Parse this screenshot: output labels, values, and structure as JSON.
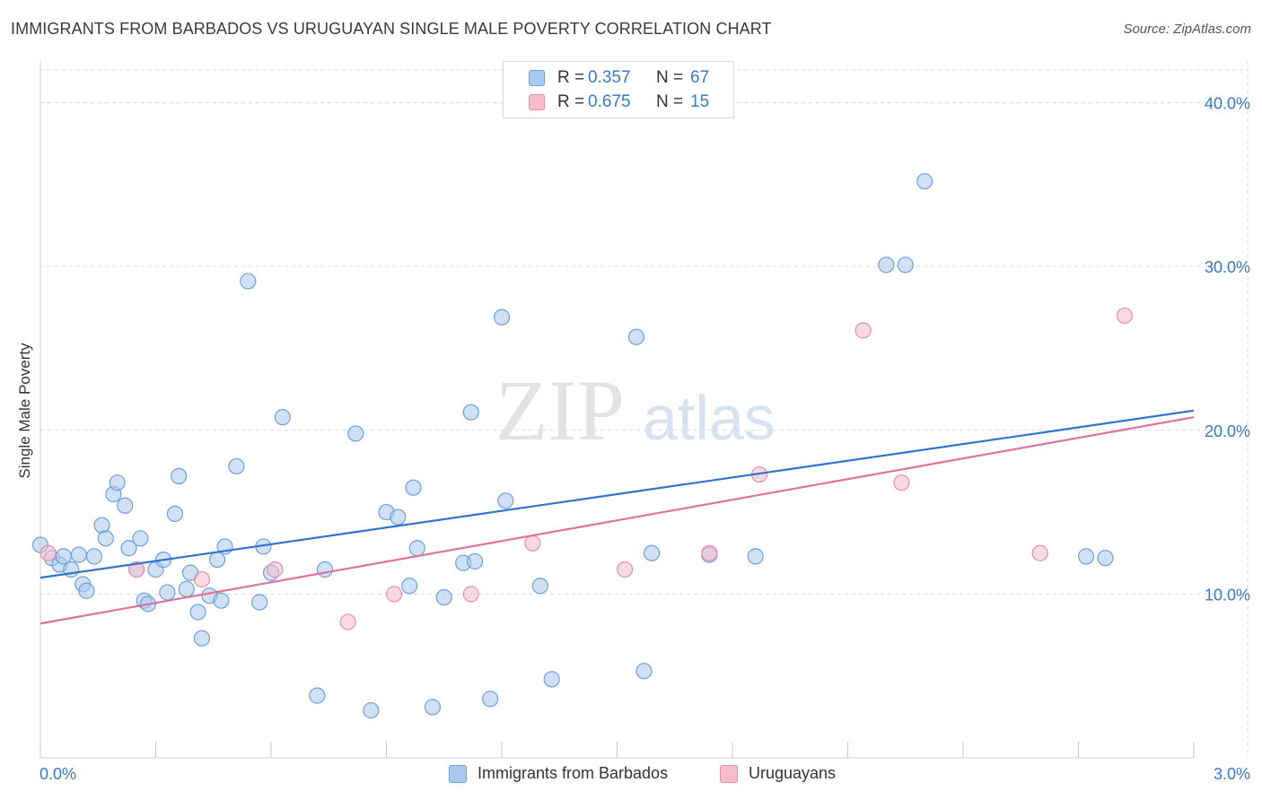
{
  "header": {
    "title": "IMMIGRANTS FROM BARBADOS VS URUGUAYAN SINGLE MALE POVERTY CORRELATION CHART",
    "source": "Source: ZipAtlas.com"
  },
  "watermark": {
    "zip": "ZIP",
    "atlas": "atlas"
  },
  "legend": {
    "r_label": "R =",
    "n_label": "N =",
    "items": [
      {
        "r": "0.357",
        "n": "67"
      },
      {
        "r": "0.675",
        "n": "15"
      }
    ]
  },
  "colors": {
    "blue_fill": "#a9c8ee",
    "blue_stroke": "#6f9fd8",
    "blue_line": "#2f74d0",
    "pink_fill": "#f5bccb",
    "pink_stroke": "#e88fa8",
    "pink_line": "#e0729a",
    "value_text": "#3a78c9",
    "grid": "#d9d9d9"
  },
  "chart_data": {
    "type": "scatter",
    "title": "IMMIGRANTS FROM BARBADOS VS URUGUAYAN SINGLE MALE POVERTY CORRELATION CHART",
    "xlabel": "",
    "ylabel": "Single Male Poverty",
    "xlim": [
      0,
      3.0
    ],
    "ylim": [
      0,
      42
    ],
    "x_tick_labels": [
      "0.0%",
      "3.0%"
    ],
    "y_ticks": [
      10,
      20,
      30,
      40
    ],
    "y_tick_labels": [
      "10.0%",
      "20.0%",
      "30.0%",
      "40.0%"
    ],
    "grid": true,
    "series": [
      {
        "name": "Immigrants from Barbados",
        "color": "#a9c8ee",
        "trend": {
          "x": [
            0,
            3.0
          ],
          "y": [
            11.0,
            21.2
          ]
        },
        "points": [
          [
            0.0,
            13.0
          ],
          [
            0.03,
            12.2
          ],
          [
            0.05,
            11.8
          ],
          [
            0.06,
            12.3
          ],
          [
            0.08,
            11.5
          ],
          [
            0.1,
            12.4
          ],
          [
            0.11,
            10.6
          ],
          [
            0.12,
            10.2
          ],
          [
            0.14,
            12.3
          ],
          [
            0.16,
            14.2
          ],
          [
            0.17,
            13.4
          ],
          [
            0.19,
            16.1
          ],
          [
            0.2,
            16.8
          ],
          [
            0.22,
            15.4
          ],
          [
            0.23,
            12.8
          ],
          [
            0.25,
            11.5
          ],
          [
            0.26,
            13.4
          ],
          [
            0.27,
            9.6
          ],
          [
            0.28,
            9.4
          ],
          [
            0.3,
            11.5
          ],
          [
            0.32,
            12.1
          ],
          [
            0.33,
            10.1
          ],
          [
            0.35,
            14.9
          ],
          [
            0.36,
            17.2
          ],
          [
            0.38,
            10.3
          ],
          [
            0.39,
            11.3
          ],
          [
            0.41,
            8.9
          ],
          [
            0.42,
            7.3
          ],
          [
            0.44,
            9.9
          ],
          [
            0.46,
            12.1
          ],
          [
            0.47,
            9.6
          ],
          [
            0.48,
            12.9
          ],
          [
            0.51,
            17.8
          ],
          [
            0.54,
            29.1
          ],
          [
            0.57,
            9.5
          ],
          [
            0.58,
            12.9
          ],
          [
            0.6,
            11.3
          ],
          [
            0.63,
            20.8
          ],
          [
            0.72,
            3.8
          ],
          [
            0.74,
            11.5
          ],
          [
            0.82,
            19.8
          ],
          [
            0.86,
            2.9
          ],
          [
            0.9,
            15.0
          ],
          [
            0.93,
            14.7
          ],
          [
            0.96,
            10.5
          ],
          [
            0.97,
            16.5
          ],
          [
            0.98,
            12.8
          ],
          [
            1.02,
            3.1
          ],
          [
            1.05,
            9.8
          ],
          [
            1.1,
            11.9
          ],
          [
            1.12,
            21.1
          ],
          [
            1.13,
            12.0
          ],
          [
            1.17,
            3.6
          ],
          [
            1.2,
            26.9
          ],
          [
            1.21,
            15.7
          ],
          [
            1.3,
            10.5
          ],
          [
            1.33,
            4.8
          ],
          [
            1.55,
            25.7
          ],
          [
            1.57,
            5.3
          ],
          [
            1.59,
            12.5
          ],
          [
            1.74,
            12.4
          ],
          [
            1.86,
            12.3
          ],
          [
            2.2,
            30.1
          ],
          [
            2.25,
            30.1
          ],
          [
            2.3,
            35.2
          ],
          [
            2.72,
            12.3
          ],
          [
            2.77,
            12.2
          ]
        ]
      },
      {
        "name": "Uruguayans",
        "color": "#f5bccb",
        "trend": {
          "x": [
            0,
            3.0
          ],
          "y": [
            8.2,
            20.8
          ]
        },
        "points": [
          [
            0.02,
            12.5
          ],
          [
            0.25,
            11.5
          ],
          [
            0.42,
            10.9
          ],
          [
            0.61,
            11.5
          ],
          [
            0.8,
            8.3
          ],
          [
            0.92,
            10.0
          ],
          [
            1.12,
            10.0
          ],
          [
            1.28,
            13.1
          ],
          [
            1.52,
            11.5
          ],
          [
            1.74,
            12.5
          ],
          [
            1.87,
            17.3
          ],
          [
            2.14,
            26.1
          ],
          [
            2.24,
            16.8
          ],
          [
            2.6,
            12.5
          ],
          [
            2.82,
            27.0
          ]
        ]
      }
    ]
  }
}
